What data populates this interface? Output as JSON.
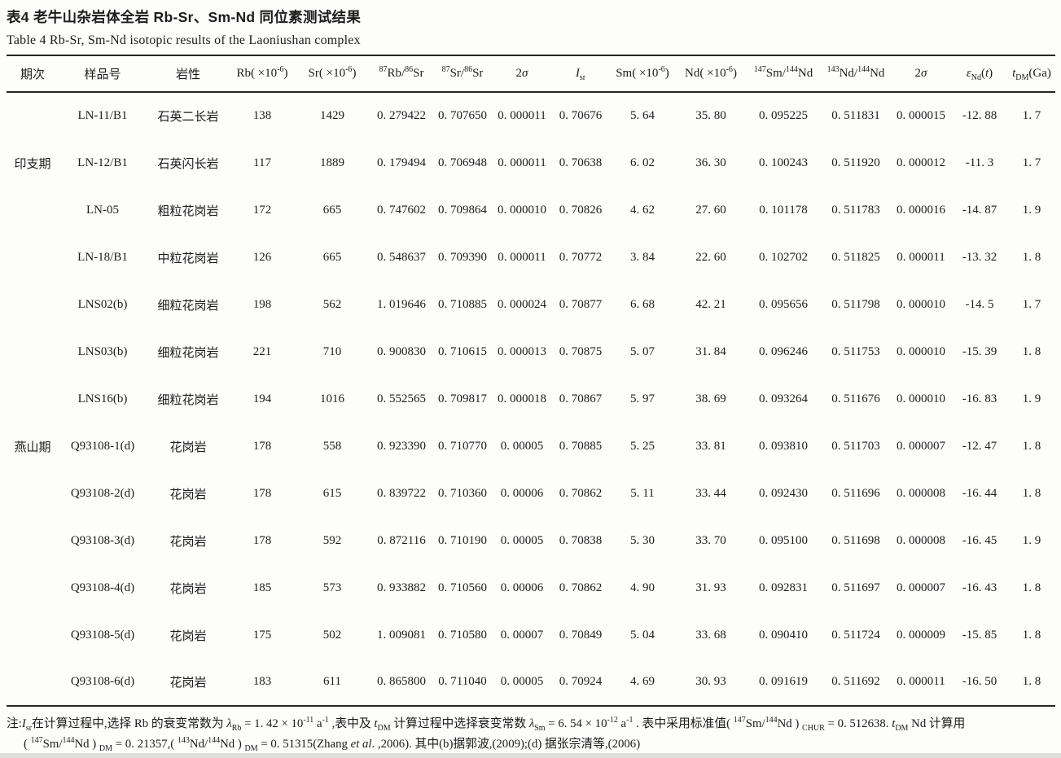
{
  "page": {
    "title_cn": "表4  老牛山杂岩体全岩 Rb-Sr、Sm-Nd 同位素测试结果",
    "title_en": "Table 4   Rb-Sr, Sm-Nd isotopic results of the Laoniushan complex"
  },
  "table": {
    "columns": [
      "期次",
      "样品号",
      "岩性",
      "Rb( ×10^{-6})",
      "Sr( ×10^{-6})",
      "^{87}Rb/^{86}Sr",
      "^{87}Sr/^{86}Sr",
      "2*σ*",
      "*I*_{sr}",
      "Sm( ×10^{-6})",
      "Nd( ×10^{-6})",
      "^{147}Sm/^{144}Nd",
      "^{143}Nd/^{144}Nd",
      "2*σ*",
      "*ε*_{Nd}(*t*)",
      "*t*_{DM}(Ga)"
    ],
    "rows": [
      [
        "",
        "LN-11/B1",
        "石英二长岩",
        "138",
        "1429",
        "0. 279422",
        "0. 707650",
        "0. 000011",
        "0. 70676",
        "5. 64",
        "35. 80",
        "0. 095225",
        "0. 511831",
        "0. 000015",
        "-12. 88",
        "1. 7"
      ],
      [
        "印支期",
        "LN-12/B1",
        "石英闪长岩",
        "117",
        "1889",
        "0. 179494",
        "0. 706948",
        "0. 000011",
        "0. 70638",
        "6. 02",
        "36. 30",
        "0. 100243",
        "0. 511920",
        "0. 000012",
        "-11. 3",
        "1. 7"
      ],
      [
        "",
        "LN-05",
        "粗粒花岗岩",
        "172",
        "665",
        "0. 747602",
        "0. 709864",
        "0. 000010",
        "0. 70826",
        "4. 62",
        "27. 60",
        "0. 101178",
        "0. 511783",
        "0. 000016",
        "-14. 87",
        "1. 9"
      ],
      [
        "",
        "LN-18/B1",
        "中粒花岗岩",
        "126",
        "665",
        "0. 548637",
        "0. 709390",
        "0. 000011",
        "0. 70772",
        "3. 84",
        "22. 60",
        "0. 102702",
        "0. 511825",
        "0. 000011",
        "-13. 32",
        "1. 8"
      ],
      [
        "",
        "LNS02(b)",
        "细粒花岗岩",
        "198",
        "562",
        "1. 019646",
        "0. 710885",
        "0. 000024",
        "0. 70877",
        "6. 68",
        "42. 21",
        "0. 095656",
        "0. 511798",
        "0. 000010",
        "-14. 5",
        "1. 7"
      ],
      [
        "",
        "LNS03(b)",
        "细粒花岗岩",
        "221",
        "710",
        "0. 900830",
        "0. 710615",
        "0. 000013",
        "0. 70875",
        "5. 07",
        "31. 84",
        "0. 096246",
        "0. 511753",
        "0. 000010",
        "-15. 39",
        "1. 8"
      ],
      [
        "",
        "LNS16(b)",
        "细粒花岗岩",
        "194",
        "1016",
        "0. 552565",
        "0. 709817",
        "0. 000018",
        "0. 70867",
        "5. 97",
        "38. 69",
        "0. 093264",
        "0. 511676",
        "0. 000010",
        "-16. 83",
        "1. 9"
      ],
      [
        "燕山期",
        "Q93108-1(d)",
        "花岗岩",
        "178",
        "558",
        "0. 923390",
        "0. 710770",
        "0. 00005",
        "0. 70885",
        "5. 25",
        "33. 81",
        "0. 093810",
        "0. 511703",
        "0. 000007",
        "-12. 47",
        "1. 8"
      ],
      [
        "",
        "Q93108-2(d)",
        "花岗岩",
        "178",
        "615",
        "0. 839722",
        "0. 710360",
        "0. 00006",
        "0. 70862",
        "5. 11",
        "33. 44",
        "0. 092430",
        "0. 511696",
        "0. 000008",
        "-16. 44",
        "1. 8"
      ],
      [
        "",
        "Q93108-3(d)",
        "花岗岩",
        "178",
        "592",
        "0. 872116",
        "0. 710190",
        "0. 00005",
        "0. 70838",
        "5. 30",
        "33. 70",
        "0. 095100",
        "0. 511698",
        "0. 000008",
        "-16. 45",
        "1. 9"
      ],
      [
        "",
        "Q93108-4(d)",
        "花岗岩",
        "185",
        "573",
        "0. 933882",
        "0. 710560",
        "0. 00006",
        "0. 70862",
        "4. 90",
        "31. 93",
        "0. 092831",
        "0. 511697",
        "0. 000007",
        "-16. 43",
        "1. 8"
      ],
      [
        "",
        "Q93108-5(d)",
        "花岗岩",
        "175",
        "502",
        "1. 009081",
        "0. 710580",
        "0. 00007",
        "0. 70849",
        "5. 04",
        "33. 68",
        "0. 090410",
        "0. 511724",
        "0. 000009",
        "-15. 85",
        "1. 8"
      ],
      [
        "",
        "Q93108-6(d)",
        "花岗岩",
        "183",
        "611",
        "0. 865800",
        "0. 711040",
        "0. 00005",
        "0. 70924",
        "4. 69",
        "30. 93",
        "0. 091619",
        "0. 511692",
        "0. 000011",
        "-16. 50",
        "1. 8"
      ]
    ]
  },
  "footnote": {
    "line1": "注:*I*_{sr}在计算过程中,选择 Rb 的衰变常数为 *λ*_{Rb} = 1. 42 × 10^{-11} a^{-1} ,表中及 *t*_{DM} 计算过程中选择衰变常数 *λ*_{Sm} = 6. 54 × 10^{-12} a^{-1} .  表中采用标准值( ^{147}Sm/^{144}Nd ) _{CHUR} = 0. 512638.  *t*_{DM} Nd 计算用",
    "line2": "( ^{147}Sm/^{144}Nd ) _{DM} = 0. 21357,( ^{143}Nd/^{144}Nd ) _{DM} = 0. 51315(Zhang *et al*. ,2006).  其中(b)据郭波,(2009);(d) 据张宗清等,(2006)"
  }
}
